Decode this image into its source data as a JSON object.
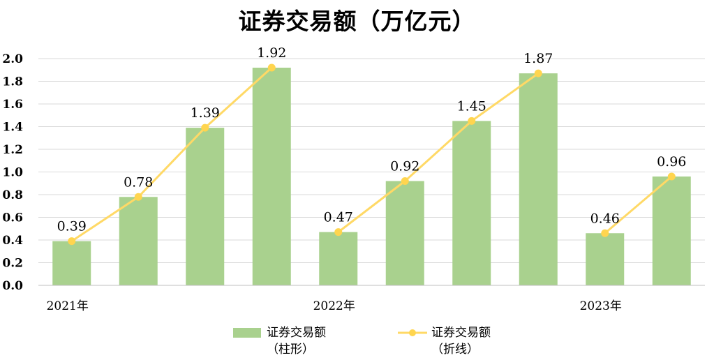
{
  "title": "证券交易额（万亿元）",
  "colors": {
    "bar": "#A9D18E",
    "line": "#FFD966",
    "marker": "#FFD54F",
    "grid": "#D9D9D9",
    "axis": "#BFBFBF"
  },
  "legend": {
    "bar_line1": "证券交易额",
    "bar_line2": "（柱形）",
    "line_line1": "证券交易额",
    "line_line2": "（折线）"
  },
  "chart_data": {
    "type": "bar",
    "title": "证券交易额（万亿元）",
    "xlabel": "",
    "ylabel": "",
    "ylim": [
      0,
      2.0
    ],
    "yticks": [
      "0.0",
      "0.2",
      "0.4",
      "0.6",
      "0.8",
      "1.0",
      "1.2",
      "1.4",
      "1.6",
      "1.8",
      "2.0"
    ],
    "year_labels": [
      "2021年",
      "",
      "",
      "",
      "2022年",
      "",
      "",
      "",
      "2023年",
      ""
    ],
    "values": [
      0.39,
      0.78,
      1.39,
      1.92,
      0.47,
      0.92,
      1.45,
      1.87,
      0.46,
      0.96
    ],
    "data_labels": [
      "0.39",
      "0.78",
      "1.39",
      "1.92",
      "0.47",
      "0.92",
      "1.45",
      "1.87",
      "0.46",
      "0.96"
    ],
    "series": [
      {
        "name": "证券交易额（柱形）",
        "type": "bar",
        "values": [
          0.39,
          0.78,
          1.39,
          1.92,
          0.47,
          0.92,
          1.45,
          1.87,
          0.46,
          0.96
        ]
      },
      {
        "name": "证券交易额（折线）",
        "type": "line",
        "segments": [
          [
            0,
            3
          ],
          [
            4,
            7
          ],
          [
            8,
            9
          ]
        ],
        "values": [
          0.39,
          0.78,
          1.39,
          1.92,
          0.47,
          0.92,
          1.45,
          1.87,
          0.46,
          0.96
        ]
      }
    ],
    "grid": true,
    "legend_position": "bottom"
  }
}
